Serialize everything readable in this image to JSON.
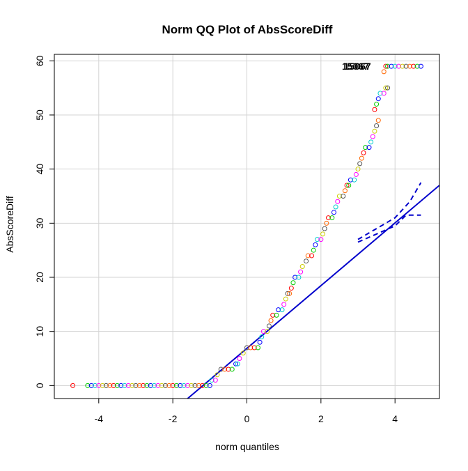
{
  "chart_data": {
    "type": "scatter",
    "title": "Norm QQ Plot of AbsScoreDiff",
    "xlabel": "norm quantiles",
    "ylabel": "AbsScoreDiff",
    "xlim": [
      -5.2,
      5.2
    ],
    "ylim": [
      -2.4,
      61.2
    ],
    "x_ticks": [
      "-4",
      "-2",
      "0",
      "2",
      "4"
    ],
    "y_ticks": [
      "0",
      "10",
      "20",
      "30",
      "40",
      "50",
      "60"
    ],
    "grid": true,
    "point_colors": [
      "#ff0000",
      "#00cc00",
      "#0000ff",
      "#00cccc",
      "#ff00ff",
      "#cccc00",
      "#555555",
      "#ff6600"
    ],
    "annotations": [
      {
        "label": "15067",
        "x": 3.3,
        "y": 59
      },
      {
        "label": "15067",
        "x": 3.35,
        "y": 59
      }
    ],
    "series": [
      {
        "kind": "points",
        "points": [
          [
            -4.7,
            0
          ],
          [
            -4.3,
            0
          ],
          [
            -4.2,
            0
          ],
          [
            -4.1,
            0
          ],
          [
            -4.0,
            0
          ],
          [
            -3.9,
            0
          ],
          [
            -3.8,
            0
          ],
          [
            -3.7,
            0
          ],
          [
            -3.6,
            0
          ],
          [
            -3.5,
            0
          ],
          [
            -3.4,
            0
          ],
          [
            -3.3,
            0
          ],
          [
            -3.2,
            0
          ],
          [
            -3.1,
            0
          ],
          [
            -3.0,
            0
          ],
          [
            -2.9,
            0
          ],
          [
            -2.8,
            0
          ],
          [
            -2.7,
            0
          ],
          [
            -2.6,
            0
          ],
          [
            -2.5,
            0
          ],
          [
            -2.4,
            0
          ],
          [
            -2.3,
            0
          ],
          [
            -2.2,
            0
          ],
          [
            -2.1,
            0
          ],
          [
            -2.0,
            0
          ],
          [
            -1.9,
            0
          ],
          [
            -1.8,
            0
          ],
          [
            -1.7,
            0
          ],
          [
            -1.6,
            0
          ],
          [
            -1.5,
            0
          ],
          [
            -1.4,
            0
          ],
          [
            -1.3,
            0
          ],
          [
            -1.2,
            0
          ],
          [
            -1.1,
            0
          ],
          [
            -1.0,
            0
          ],
          [
            -0.95,
            1
          ],
          [
            -0.85,
            1
          ],
          [
            -0.8,
            2
          ],
          [
            -0.7,
            3
          ],
          [
            -0.6,
            3
          ],
          [
            -0.5,
            3
          ],
          [
            -0.4,
            3
          ],
          [
            -0.3,
            4
          ],
          [
            -0.25,
            4
          ],
          [
            -0.2,
            5
          ],
          [
            -0.1,
            6
          ],
          [
            0.0,
            7
          ],
          [
            0.1,
            7
          ],
          [
            0.2,
            7
          ],
          [
            0.3,
            7
          ],
          [
            0.35,
            8
          ],
          [
            0.4,
            9
          ],
          [
            0.45,
            10
          ],
          [
            0.55,
            10
          ],
          [
            0.6,
            11
          ],
          [
            0.65,
            12
          ],
          [
            0.7,
            13
          ],
          [
            0.8,
            13
          ],
          [
            0.85,
            14
          ],
          [
            0.95,
            14
          ],
          [
            1.0,
            15
          ],
          [
            1.05,
            16
          ],
          [
            1.1,
            17
          ],
          [
            1.15,
            17
          ],
          [
            1.2,
            18
          ],
          [
            1.25,
            19
          ],
          [
            1.3,
            20
          ],
          [
            1.4,
            20
          ],
          [
            1.45,
            21
          ],
          [
            1.5,
            22
          ],
          [
            1.6,
            23
          ],
          [
            1.65,
            24
          ],
          [
            1.75,
            24
          ],
          [
            1.8,
            25
          ],
          [
            1.85,
            26
          ],
          [
            1.9,
            27
          ],
          [
            2.0,
            27
          ],
          [
            2.05,
            28
          ],
          [
            2.1,
            29
          ],
          [
            2.15,
            30
          ],
          [
            2.2,
            31
          ],
          [
            2.3,
            31
          ],
          [
            2.35,
            32
          ],
          [
            2.4,
            33
          ],
          [
            2.45,
            34
          ],
          [
            2.5,
            35
          ],
          [
            2.6,
            35
          ],
          [
            2.65,
            36
          ],
          [
            2.7,
            37
          ],
          [
            2.75,
            37
          ],
          [
            2.8,
            38
          ],
          [
            2.9,
            38
          ],
          [
            2.95,
            39
          ],
          [
            3.0,
            40
          ],
          [
            3.05,
            41
          ],
          [
            3.1,
            42
          ],
          [
            3.15,
            43
          ],
          [
            3.2,
            44
          ],
          [
            3.3,
            44
          ],
          [
            3.35,
            45
          ],
          [
            3.4,
            46
          ],
          [
            3.45,
            47
          ],
          [
            3.5,
            48
          ],
          [
            3.55,
            49
          ],
          [
            3.45,
            51
          ],
          [
            3.5,
            52
          ],
          [
            3.55,
            53
          ],
          [
            3.6,
            54
          ],
          [
            3.7,
            54
          ],
          [
            3.75,
            55
          ],
          [
            3.8,
            55
          ],
          [
            3.7,
            58
          ],
          [
            3.75,
            59
          ],
          [
            3.8,
            59
          ],
          [
            3.9,
            59
          ],
          [
            4.0,
            59
          ],
          [
            4.1,
            59
          ],
          [
            4.2,
            59
          ],
          [
            4.3,
            59
          ],
          [
            4.4,
            59
          ],
          [
            4.5,
            59
          ],
          [
            4.6,
            59
          ],
          [
            4.7,
            59
          ]
        ]
      },
      {
        "kind": "line",
        "style": "solid",
        "points": [
          [
            -1.6,
            -2.4
          ],
          [
            5.2,
            37
          ]
        ]
      },
      {
        "kind": "line",
        "style": "dashed",
        "points": [
          [
            3.0,
            27
          ],
          [
            3.5,
            29
          ],
          [
            4.0,
            31
          ],
          [
            4.4,
            34
          ],
          [
            4.7,
            37.5
          ]
        ]
      },
      {
        "kind": "line",
        "style": "dashed",
        "points": [
          [
            3.0,
            26.5
          ],
          [
            3.5,
            28
          ],
          [
            4.0,
            29.5
          ],
          [
            4.3,
            31.5
          ],
          [
            4.7,
            31.5
          ]
        ]
      }
    ]
  }
}
